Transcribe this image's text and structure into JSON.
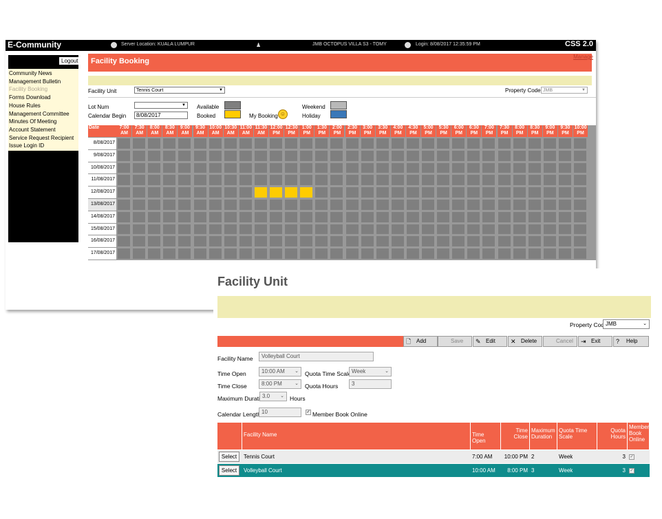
{
  "window1": {
    "topbar": {
      "app_name": "E-Community",
      "server_location": "Server Location: KUALA LUMPUR",
      "property": "JMB OCTOPUS VILLA S3 - TOMY",
      "login": "Login: 8/08/2017 12:35:59 PM",
      "brand": "CSS 2.0"
    },
    "sidebar": {
      "logout": "Logout",
      "items": [
        {
          "label": "Community News"
        },
        {
          "label": "Management Bulletin"
        },
        {
          "label": "Facility Booking"
        },
        {
          "label": "Forms Download"
        },
        {
          "label": "House Rules"
        },
        {
          "label": "Management Committee"
        },
        {
          "label": "Minutes Of Meeting"
        },
        {
          "label": "Account Statement"
        },
        {
          "label": "Service Request Recipient"
        },
        {
          "label": "Issue Login ID"
        }
      ]
    },
    "header": {
      "title": "Facility Booking",
      "manage_link": "Manage"
    },
    "form": {
      "facility_unit_label": "Facility Unit",
      "facility_unit_value": "Tennis Court",
      "property_code_label": "Property Code",
      "property_code_value": "JMB",
      "lot_num_label": "Lot Num",
      "lot_num_value": "",
      "calendar_begin_label": "Calendar Begin",
      "calendar_begin_value": "8/08/2017"
    },
    "legend": {
      "available": "Available",
      "booked": "Booked",
      "my_booking": "My Booking",
      "weekend": "Weekend",
      "holiday": "Holiday"
    },
    "colors": {
      "accent": "#f26248",
      "available": "#7f7f7f",
      "booked": "#ffcc00",
      "weekend": "#b8b8b8",
      "holiday": "#3a78b8",
      "highlight": "#f0ecb4"
    },
    "grid": {
      "date_header": "Date",
      "times": [
        [
          "7:00",
          "AM"
        ],
        [
          "7:30",
          "AM"
        ],
        [
          "8:00",
          "AM"
        ],
        [
          "8:30",
          "AM"
        ],
        [
          "9:00",
          "AM"
        ],
        [
          "9:30",
          "AM"
        ],
        [
          "10:00",
          "AM"
        ],
        [
          "10:30",
          "AM"
        ],
        [
          "11:00",
          "AM"
        ],
        [
          "11:30",
          "AM"
        ],
        [
          "12:00",
          "PM"
        ],
        [
          "12:30",
          "PM"
        ],
        [
          "1:00",
          "PM"
        ],
        [
          "1:30",
          "PM"
        ],
        [
          "2:00",
          "PM"
        ],
        [
          "2:30",
          "PM"
        ],
        [
          "3:00",
          "PM"
        ],
        [
          "3:30",
          "PM"
        ],
        [
          "4:00",
          "PM"
        ],
        [
          "4:30",
          "PM"
        ],
        [
          "5:00",
          "PM"
        ],
        [
          "5:30",
          "PM"
        ],
        [
          "6:00",
          "PM"
        ],
        [
          "6:30",
          "PM"
        ],
        [
          "7:00",
          "PM"
        ],
        [
          "7:30",
          "PM"
        ],
        [
          "8:00",
          "PM"
        ],
        [
          "8:30",
          "PM"
        ],
        [
          "9:00",
          "PM"
        ],
        [
          "9:30",
          "PM"
        ],
        [
          "10:00",
          "PM"
        ]
      ],
      "dates": [
        "8/08/2017",
        "9/08/2017",
        "10/08/2017",
        "11/08/2017",
        "12/08/2017",
        "13/08/2017",
        "14/08/2017",
        "15/08/2017",
        "16/08/2017",
        "17/08/2017"
      ],
      "booked": [
        {
          "row": 4,
          "cols": [
            9,
            10,
            11,
            12
          ]
        }
      ]
    }
  },
  "window2": {
    "title": "Facility Unit",
    "property_code_label": "Property Code",
    "property_code_value": "JMB",
    "toolbar": {
      "add": "Add",
      "save": "Save",
      "edit": "Edit",
      "delete": "Delete",
      "cancel": "Cancel",
      "exit": "Exit",
      "help": "Help"
    },
    "form": {
      "facility_name_label": "Facility Name",
      "facility_name_value": "Volleyball Court",
      "time_open_label": "Time Open",
      "time_open_value": "10:00 AM",
      "quota_time_scale_label": "Quota Time Scale",
      "quota_time_scale_value": "Week",
      "time_close_label": "Time Close",
      "time_close_value": "8:00 PM",
      "quota_hours_label": "Quota Hours",
      "quota_hours_value": "3",
      "max_duration_label": "Maximum Duration",
      "max_duration_value": "3.0",
      "hours_label": "Hours",
      "calendar_length_label": "Calendar Length",
      "calendar_length_value": "10",
      "member_book_online_label": "Member Book Online"
    },
    "table": {
      "headers": {
        "facility_name": "Facility Name",
        "time_open": "Time Open",
        "time_close": "Time Close",
        "max_duration": "Maximum Duration",
        "quota_time_scale": "Quota Time Scale",
        "quota_hours": "Quota Hours",
        "member_book_online": "Member Book Online"
      },
      "select_label": "Select",
      "rows": [
        {
          "name": "Tennis Court",
          "open": "7:00 AM",
          "close": "10:00 PM",
          "max": "2",
          "scale": "Week",
          "quota": "3",
          "online": "✓"
        },
        {
          "name": "Volleyball Court",
          "open": "10:00 AM",
          "close": "8:00 PM",
          "max": "3",
          "scale": "Week",
          "quota": "3",
          "online": "✓"
        }
      ]
    },
    "colors": {
      "selected_row": "#0f8c8c",
      "row_bg": "#ececec"
    }
  }
}
